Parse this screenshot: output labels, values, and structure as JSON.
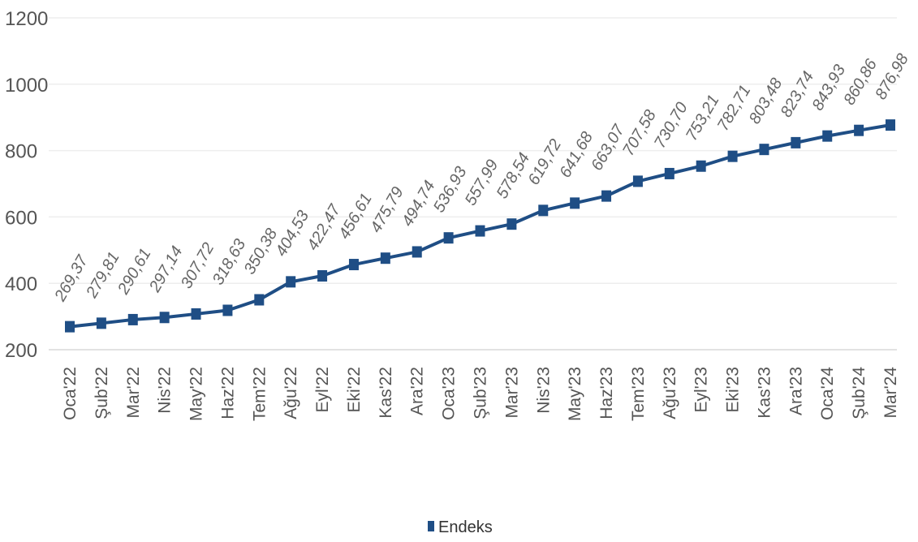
{
  "chart_data": {
    "type": "line",
    "categories": [
      "Oca'22",
      "Şub'22",
      "Mar'22",
      "Nis'22",
      "May'22",
      "Haz'22",
      "Tem'22",
      "Ağu'22",
      "Eyl'22",
      "Eki'22",
      "Kas'22",
      "Ara'22",
      "Oca'23",
      "Şub'23",
      "Mar'23",
      "Nis'23",
      "May'23",
      "Haz'23",
      "Tem'23",
      "Ağu'23",
      "Eyl'23",
      "Eki'23",
      "Kas'23",
      "Ara'23",
      "Oca'24",
      "Şub'24",
      "Mar'24"
    ],
    "series": [
      {
        "name": "Endeks",
        "values": [
          269.37,
          279.81,
          290.61,
          297.14,
          307.72,
          318.63,
          350.38,
          404.53,
          422.47,
          456.61,
          475.79,
          494.74,
          536.93,
          557.99,
          578.54,
          619.72,
          641.68,
          663.07,
          707.58,
          730.7,
          753.21,
          782.71,
          803.48,
          823.74,
          843.93,
          860.86,
          876.98
        ],
        "labels": [
          "269,37",
          "279,81",
          "290,61",
          "297,14",
          "307,72",
          "318,63",
          "350,38",
          "404,53",
          "422,47",
          "456,61",
          "475,79",
          "494,74",
          "536,93",
          "557,99",
          "578,54",
          "619,72",
          "641,68",
          "663,07",
          "707,58",
          "730,70",
          "753,21",
          "782,71",
          "803,48",
          "823,74",
          "843,93",
          "860,86",
          "876,98"
        ]
      }
    ],
    "yticks": [
      200,
      400,
      600,
      800,
      1000,
      1200
    ],
    "ylim": [
      200,
      1200
    ],
    "grid": true,
    "legend_position": "bottom",
    "colors": {
      "line": "#1f4e85",
      "grid": "#eeeeee",
      "text": "#555555"
    }
  }
}
